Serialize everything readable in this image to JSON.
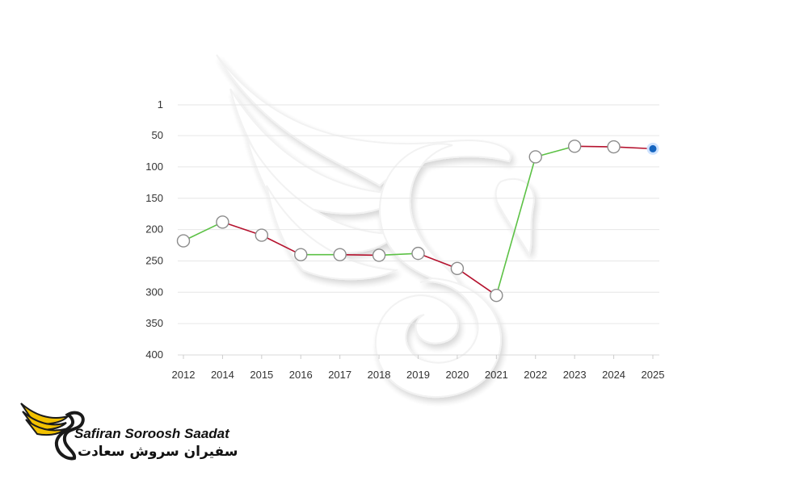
{
  "chart_data": {
    "type": "line",
    "title": "",
    "xlabel": "",
    "ylabel": "",
    "categories": [
      "2012",
      "2014",
      "2015",
      "2016",
      "2017",
      "2018",
      "2019",
      "2020",
      "2021",
      "2022",
      "2023",
      "2024",
      "2025"
    ],
    "values": [
      218,
      188,
      209,
      240,
      240,
      241,
      238,
      262,
      305,
      84,
      67,
      68,
      71
    ],
    "y_ticks": [
      "1",
      "50",
      "100",
      "150",
      "200",
      "250",
      "300",
      "350",
      "400"
    ],
    "y_tick_values": [
      1,
      50,
      100,
      150,
      200,
      250,
      300,
      350,
      400
    ],
    "ylim": [
      1,
      400
    ],
    "y_inverted": true,
    "grid": true,
    "legend": "none",
    "colors": {
      "improving": "#5cc145",
      "declining": "#b5122e",
      "last_point": "#1565c0",
      "marker_fill": "#ffffff",
      "marker_stroke": "#8c8c8c"
    }
  },
  "brand": {
    "name": "Safiran Soroosh Saadat",
    "name_persian": "سفیران سروش سعادت",
    "colors": {
      "wing": "#f2c100",
      "text": "#111111"
    }
  }
}
